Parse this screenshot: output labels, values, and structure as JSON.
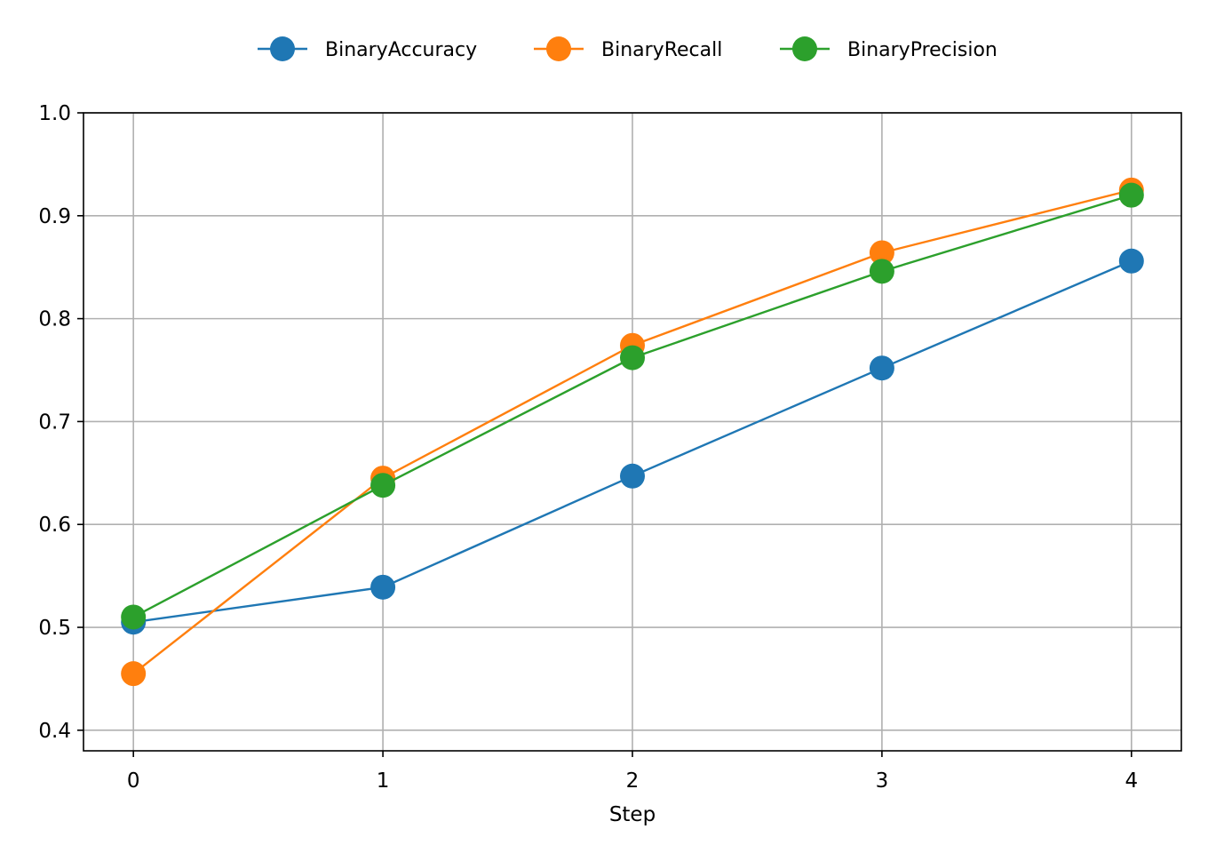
{
  "chart_data": {
    "type": "line",
    "title": "",
    "xlabel": "Step",
    "ylabel": "",
    "x": [
      0,
      1,
      2,
      3,
      4
    ],
    "xticks": [
      "0",
      "1",
      "2",
      "3",
      "4"
    ],
    "yticks": [
      "0.4",
      "0.5",
      "0.6",
      "0.7",
      "0.8",
      "0.9",
      "1.0"
    ],
    "xlim": [
      -0.2,
      4.2
    ],
    "ylim": [
      0.38,
      1.0
    ],
    "grid": true,
    "legend_position": "top-center",
    "series": [
      {
        "name": "BinaryAccuracy",
        "color": "#1f77b4",
        "values": [
          0.505,
          0.539,
          0.647,
          0.752,
          0.856
        ]
      },
      {
        "name": "BinaryRecall",
        "color": "#ff7f0e",
        "values": [
          0.455,
          0.645,
          0.774,
          0.864,
          0.925
        ]
      },
      {
        "name": "BinaryPrecision",
        "color": "#2ca02c",
        "values": [
          0.51,
          0.638,
          0.762,
          0.846,
          0.92
        ]
      }
    ]
  }
}
